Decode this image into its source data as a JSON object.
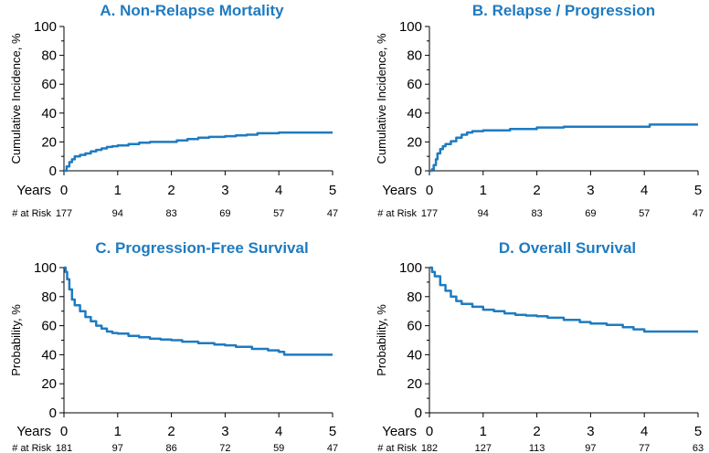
{
  "chart_data": [
    {
      "type": "line",
      "title": "A. Non-Relapse Mortality",
      "ylabel": "Cumulative Incidence, %",
      "xlabel": "Years",
      "xlim": [
        0,
        5
      ],
      "ylim": [
        0,
        100
      ],
      "yticks": [
        0,
        20,
        40,
        60,
        80,
        100
      ],
      "xticks": [
        0,
        1,
        2,
        3,
        4,
        5
      ],
      "risk_label": "# at Risk",
      "at_risk": [
        177,
        94,
        83,
        69,
        57,
        47
      ],
      "series": [
        {
          "name": "Non-Relapse Mortality",
          "x": [
            0,
            0.05,
            0.1,
            0.15,
            0.2,
            0.3,
            0.4,
            0.5,
            0.6,
            0.7,
            0.8,
            0.9,
            1.0,
            1.2,
            1.4,
            1.6,
            1.8,
            2.0,
            2.1,
            2.3,
            2.5,
            2.7,
            3.0,
            3.2,
            3.4,
            3.6,
            4.0,
            4.5,
            5.0
          ],
          "y": [
            0,
            3,
            6,
            8,
            10,
            11,
            12,
            13.5,
            14.5,
            15.5,
            16.5,
            17,
            17.5,
            18.5,
            19.5,
            20,
            20,
            20,
            21,
            22,
            23,
            23.5,
            24,
            24.5,
            25,
            26,
            26.5,
            26.5,
            26.5
          ]
        }
      ]
    },
    {
      "type": "line",
      "title": "B. Relapse / Progression",
      "ylabel": "Cumulative Incidence, %",
      "xlabel": "Years",
      "xlim": [
        0,
        5
      ],
      "ylim": [
        0,
        100
      ],
      "yticks": [
        0,
        20,
        40,
        60,
        80,
        100
      ],
      "xticks": [
        0,
        1,
        2,
        3,
        4,
        5
      ],
      "risk_label": "# at Risk",
      "at_risk": [
        177,
        94,
        83,
        69,
        57,
        47
      ],
      "series": [
        {
          "name": "Relapse / Progression",
          "x": [
            0,
            0.05,
            0.08,
            0.12,
            0.15,
            0.2,
            0.25,
            0.3,
            0.4,
            0.5,
            0.6,
            0.7,
            0.8,
            1.0,
            1.5,
            2.0,
            2.5,
            3.0,
            3.5,
            4.0,
            4.1,
            5.0
          ],
          "y": [
            0,
            1,
            4,
            8,
            12,
            15,
            17,
            18.5,
            20.5,
            23,
            25,
            26.5,
            27.5,
            28,
            29,
            30,
            30.5,
            30.5,
            30.5,
            30.5,
            32,
            32
          ]
        }
      ]
    },
    {
      "type": "line",
      "title": "C. Progression-Free Survival",
      "ylabel": "Probability, %",
      "xlabel": "Years",
      "xlim": [
        0,
        5
      ],
      "ylim": [
        0,
        100
      ],
      "yticks": [
        0,
        20,
        40,
        60,
        80,
        100
      ],
      "xticks": [
        0,
        1,
        2,
        3,
        4,
        5
      ],
      "risk_label": "# at Risk",
      "at_risk": [
        181,
        97,
        86,
        72,
        59,
        47
      ],
      "series": [
        {
          "name": "Progression-Free Survival",
          "x": [
            0,
            0.03,
            0.06,
            0.1,
            0.15,
            0.2,
            0.3,
            0.4,
            0.5,
            0.6,
            0.7,
            0.8,
            0.9,
            1.0,
            1.2,
            1.4,
            1.6,
            1.8,
            2.0,
            2.2,
            2.5,
            2.8,
            3.0,
            3.2,
            3.5,
            3.8,
            4.0,
            4.1,
            5.0
          ],
          "y": [
            100,
            97,
            92,
            85,
            78,
            74,
            70,
            66,
            63,
            60,
            58,
            56,
            55,
            54.5,
            53,
            52,
            51,
            50.5,
            50,
            49,
            48,
            47,
            46.5,
            45.5,
            44,
            43,
            42,
            40,
            40
          ]
        }
      ]
    },
    {
      "type": "line",
      "title": "D. Overall Survival",
      "ylabel": "Probability, %",
      "xlabel": "Years",
      "xlim": [
        0,
        5
      ],
      "ylim": [
        0,
        100
      ],
      "yticks": [
        0,
        20,
        40,
        60,
        80,
        100
      ],
      "xticks": [
        0,
        1,
        2,
        3,
        4,
        5
      ],
      "risk_label": "# at Risk",
      "at_risk": [
        182,
        127,
        113,
        97,
        77,
        63
      ],
      "series": [
        {
          "name": "Overall Survival",
          "x": [
            0,
            0.05,
            0.1,
            0.2,
            0.3,
            0.4,
            0.5,
            0.6,
            0.8,
            1.0,
            1.2,
            1.4,
            1.6,
            1.8,
            2.0,
            2.2,
            2.5,
            2.8,
            3.0,
            3.3,
            3.6,
            3.8,
            4.0,
            4.5,
            5.0
          ],
          "y": [
            100,
            97,
            94,
            88,
            84,
            80,
            77,
            75,
            73,
            71,
            70,
            68.5,
            67.5,
            67,
            66.5,
            65.5,
            64,
            62.5,
            61.5,
            60.5,
            59,
            57.5,
            56,
            56,
            56
          ]
        }
      ]
    }
  ]
}
